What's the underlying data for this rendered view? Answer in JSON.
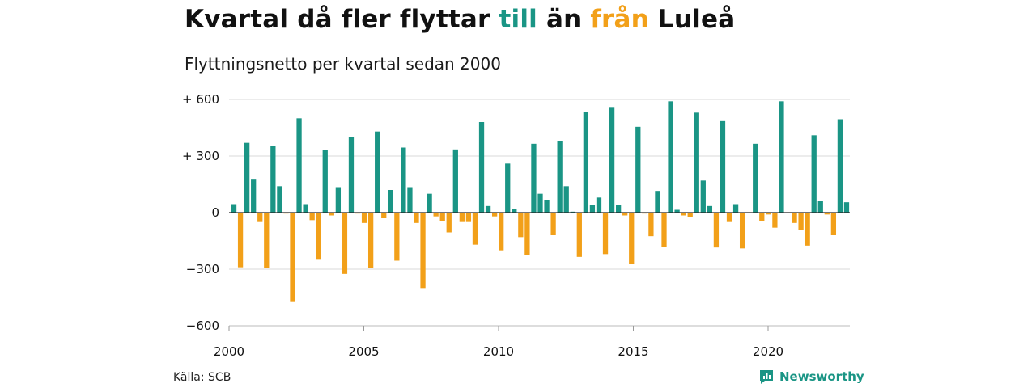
{
  "header": {
    "title_part1": "Kvartal då fler flyttar ",
    "title_till": "till",
    "title_part2": " än ",
    "title_fran": "från",
    "title_part3": " Luleå",
    "subtitle": "Flyttningsnetto per kvartal sedan 2000"
  },
  "footer": {
    "source": "Källa: SCB",
    "brand": "Newsworthy"
  },
  "colors": {
    "positive": "#1a9585",
    "negative": "#f2a019",
    "grid": "#d9d9d9",
    "zero": "#222222"
  },
  "chart_data": {
    "type": "bar",
    "title": "Kvartal då fler flyttar till än från Luleå",
    "subtitle": "Flyttningsnetto per kvartal sedan 2000",
    "xlabel": "",
    "ylabel": "",
    "ylim": [
      -600,
      600
    ],
    "yticks": [
      600,
      300,
      0,
      -300,
      -600
    ],
    "ytick_labels": [
      "+ 600",
      "+ 300",
      "0",
      "−300",
      "−600"
    ],
    "xticks": [
      2000,
      2005,
      2010,
      2015,
      2020
    ],
    "xtick_labels": [
      "2000",
      "2005",
      "2010",
      "2015",
      "2020"
    ],
    "x_start_year": 2000,
    "x_end_year": 2023,
    "grid": true,
    "series": [
      {
        "values": [
          45,
          -290,
          370,
          175,
          -50,
          -295,
          355,
          140,
          -5,
          -470,
          500,
          45,
          -40,
          -250,
          330,
          -15,
          135,
          -325,
          400,
          -5,
          -55,
          -295,
          430,
          -30,
          120,
          -255,
          345,
          135,
          -55,
          -400,
          100,
          -20,
          -45,
          -105,
          335,
          -50,
          -50,
          -170,
          480,
          35,
          -20,
          -200,
          260,
          20,
          -130,
          -225,
          365,
          100,
          65,
          -120,
          380,
          140,
          5,
          -235,
          535,
          40,
          80,
          -220,
          560,
          40,
          -15,
          -270,
          455,
          -5,
          -125,
          115,
          -180,
          590,
          15,
          -15,
          -25,
          530,
          170,
          35,
          -185,
          485,
          -50,
          45,
          -190,
          0,
          365,
          -45,
          -10,
          -80,
          590,
          0,
          -55,
          -90,
          -175,
          410,
          60,
          -10,
          -120,
          495,
          55
        ]
      }
    ]
  }
}
